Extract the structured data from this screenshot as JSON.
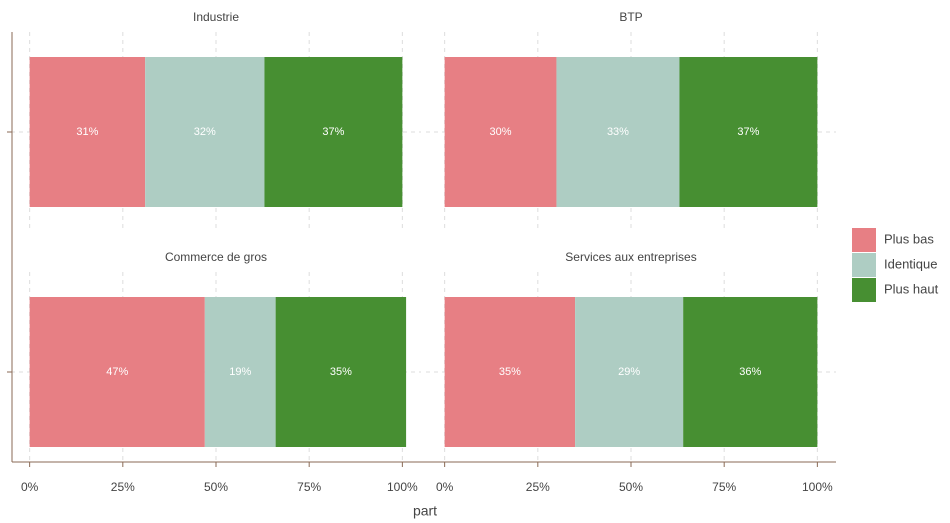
{
  "chart_data": {
    "type": "bar",
    "orientation": "horizontal",
    "stacked": true,
    "categories": [
      "Industrie",
      "BTP",
      "Commerce de gros",
      "Services aux entreprises"
    ],
    "xlabel": "part",
    "xlim": [
      -5,
      105
    ],
    "xticks": [
      {
        "value": 0,
        "label": "0%"
      },
      {
        "value": 25,
        "label": "25%"
      },
      {
        "value": 50,
        "label": "50%"
      },
      {
        "value": 75,
        "label": "75%"
      },
      {
        "value": 100,
        "label": "100%"
      }
    ],
    "grid": true,
    "legend": "right",
    "series": [
      {
        "name": "Plus bas",
        "color": "#e77f84",
        "values": [
          31,
          30,
          47,
          35
        ],
        "value_labels": [
          "31%",
          "30%",
          "47%",
          "35%"
        ]
      },
      {
        "name": "Identique",
        "color": "#aecdc3",
        "values": [
          32,
          33,
          19,
          29
        ],
        "value_labels": [
          "32%",
          "33%",
          "19%",
          "29%"
        ]
      },
      {
        "name": "Plus haut",
        "color": "#478f32",
        "values": [
          37,
          37,
          35,
          36
        ],
        "value_labels": [
          "37%",
          "37%",
          "35%",
          "36%"
        ]
      }
    ]
  }
}
